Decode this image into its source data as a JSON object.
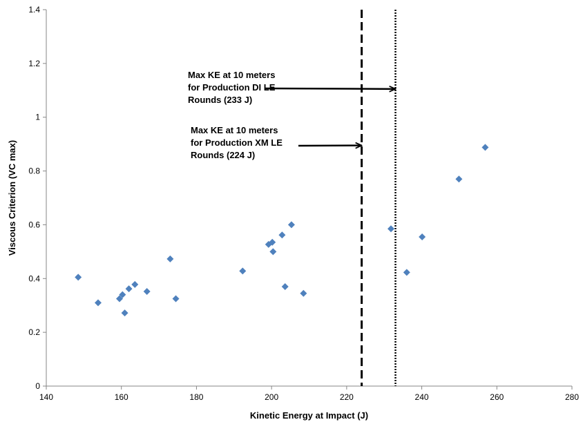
{
  "chart_data": {
    "type": "scatter",
    "title": "",
    "xlabel": "Kinetic Energy at Impact (J)",
    "ylabel": "Viscous Criterion (VC max)",
    "xlim": [
      140,
      280
    ],
    "ylim": [
      0,
      1.4
    ],
    "x_ticks": [
      "140",
      "160",
      "180",
      "200",
      "220",
      "240",
      "260",
      "280"
    ],
    "y_ticks": [
      "0",
      "0.2",
      "0.4",
      "0.6",
      "0.8",
      "1",
      "1.2",
      "1.4"
    ],
    "grid": false,
    "legend": "none",
    "marker_color": "#4F81BD",
    "series": [
      {
        "x": [
          148.5,
          153.8,
          159.5,
          160.3,
          160.9,
          162.0,
          163.6,
          166.8,
          173.0,
          174.5,
          192.3,
          199.2,
          200.2,
          200.4,
          202.8,
          203.6,
          205.3,
          208.5,
          231.8,
          236.0,
          240.1,
          249.9,
          256.9
        ],
        "y": [
          0.405,
          0.31,
          0.325,
          0.34,
          0.272,
          0.362,
          0.378,
          0.352,
          0.473,
          0.325,
          0.428,
          0.527,
          0.535,
          0.5,
          0.562,
          0.37,
          0.6,
          0.345,
          0.585,
          0.423,
          0.555,
          0.77,
          0.888
        ]
      }
    ],
    "reference_lines": [
      {
        "x": 224,
        "style": "dashed"
      },
      {
        "x": 233,
        "style": "dotted"
      }
    ],
    "annotations": [
      {
        "lines": [
          "Max KE at 10 meters",
          "for Production DI LE",
          "Rounds (233 J)"
        ],
        "arrow_to": {
          "x": 233,
          "y": 1.105
        }
      },
      {
        "lines": [
          "Max KE at 10 meters",
          "for Production XM LE",
          "Rounds (224 J)"
        ],
        "arrow_to": {
          "x": 224,
          "y": 0.895
        }
      }
    ]
  }
}
